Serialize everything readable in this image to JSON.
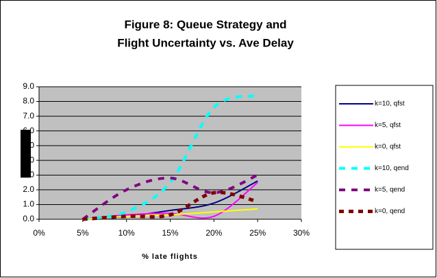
{
  "chart_data": {
    "type": "line",
    "title": [
      "Figure 8: Queue Strategy and",
      "Flight Uncertainty vs. Ave Delay"
    ],
    "x_label": "% late flights",
    "x": [
      5,
      10,
      15,
      20,
      25
    ],
    "xlim": [
      0,
      30
    ],
    "xticks": [
      {
        "value": 0,
        "label": "0%"
      },
      {
        "value": 5,
        "label": "5%"
      },
      {
        "value": 10,
        "label": "10%"
      },
      {
        "value": 15,
        "label": "15%"
      },
      {
        "value": 20,
        "label": "20%"
      },
      {
        "value": 25,
        "label": "25%"
      },
      {
        "value": 30,
        "label": "30%"
      }
    ],
    "ylim": [
      0,
      9
    ],
    "yticks": [
      {
        "value": 0,
        "label": "0.0"
      },
      {
        "value": 1,
        "label": "1.0"
      },
      {
        "value": 2,
        "label": "2.0"
      },
      {
        "value": 3,
        "label": "3.0"
      },
      {
        "value": 4,
        "label": "4.0"
      },
      {
        "value": 5,
        "label": "5.0"
      },
      {
        "value": 6,
        "label": "6.0"
      },
      {
        "value": 7,
        "label": "7.0"
      },
      {
        "value": 8,
        "label": "8.0"
      },
      {
        "value": 9,
        "label": "9.0"
      }
    ],
    "grid": true,
    "legend": "right",
    "series": [
      {
        "name": "k=10, qfst",
        "color": "#000080",
        "style": "solid",
        "values": [
          0,
          0.2,
          0.6,
          1.1,
          2.6
        ]
      },
      {
        "name": "k=5, qfst",
        "color": "#ff00ff",
        "style": "solid",
        "values": [
          0,
          0.3,
          0.4,
          0.2,
          2.5
        ]
      },
      {
        "name": "k=0, qfst",
        "color": "#ffff00",
        "style": "solid",
        "values": [
          0,
          0.2,
          0.3,
          0.5,
          0.7
        ]
      },
      {
        "name": "k=10, qend",
        "color": "#00ffff",
        "style": "dash",
        "values": [
          0,
          0.5,
          2.5,
          7.6,
          8.4
        ]
      },
      {
        "name": "k=5, qend",
        "color": "#800080",
        "style": "dash",
        "values": [
          0,
          2.0,
          2.8,
          1.8,
          3.0
        ]
      },
      {
        "name": "k=0, qend",
        "color": "#800000",
        "style": "square",
        "values": [
          0,
          0.2,
          0.3,
          1.8,
          1.2
        ]
      }
    ]
  }
}
